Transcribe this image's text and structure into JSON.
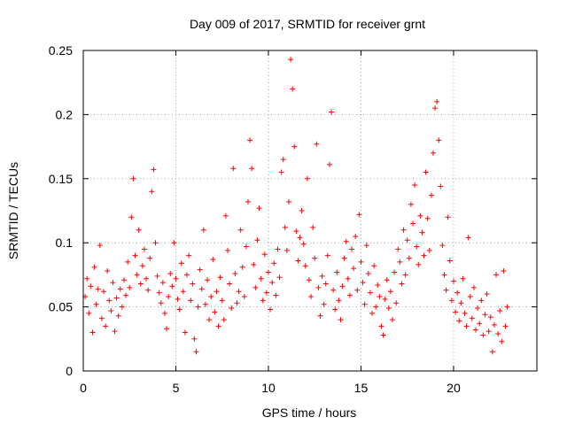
{
  "chart_data": {
    "type": "scatter",
    "title": "Day 009 of 2017, SRMTID for receiver grnt",
    "xlabel": "GPS time / hours",
    "ylabel": "SRMTID / TECUs",
    "xlim": [
      0,
      24.5
    ],
    "ylim": [
      0,
      0.25
    ],
    "x_ticks": [
      0,
      5,
      10,
      15,
      20
    ],
    "y_ticks": [
      0,
      0.05,
      0.1,
      0.15,
      0.2,
      0.25
    ],
    "x_tick_labels": [
      "0",
      "5",
      "10",
      "15",
      "20"
    ],
    "y_tick_labels": [
      "0",
      "0.05",
      "0.1",
      "0.15",
      "0.2",
      "0.25"
    ],
    "grid": true,
    "marker": "plus",
    "series_color": "#ff0000",
    "series": [
      {
        "name": "SRMTID",
        "points": [
          [
            0.1,
            0.058
          ],
          [
            0.2,
            0.072
          ],
          [
            0.3,
            0.045
          ],
          [
            0.4,
            0.066
          ],
          [
            0.5,
            0.03
          ],
          [
            0.6,
            0.081
          ],
          [
            0.7,
            0.052
          ],
          [
            0.8,
            0.064
          ],
          [
            0.9,
            0.098
          ],
          [
            1.0,
            0.041
          ],
          [
            1.1,
            0.062
          ],
          [
            1.2,
            0.035
          ],
          [
            1.3,
            0.078
          ],
          [
            1.4,
            0.055
          ],
          [
            1.5,
            0.047
          ],
          [
            1.6,
            0.069
          ],
          [
            1.7,
            0.031
          ],
          [
            1.8,
            0.057
          ],
          [
            1.9,
            0.043
          ],
          [
            2.0,
            0.064
          ],
          [
            2.1,
            0.05
          ],
          [
            2.2,
            0.071
          ],
          [
            2.3,
            0.059
          ],
          [
            2.4,
            0.085
          ],
          [
            2.5,
            0.065
          ],
          [
            2.6,
            0.12
          ],
          [
            2.7,
            0.15
          ],
          [
            2.8,
            0.09
          ],
          [
            2.9,
            0.075
          ],
          [
            3.0,
            0.11
          ],
          [
            3.1,
            0.068
          ],
          [
            3.2,
            0.082
          ],
          [
            3.3,
            0.095
          ],
          [
            3.4,
            0.072
          ],
          [
            3.5,
            0.063
          ],
          [
            3.6,
            0.088
          ],
          [
            3.7,
            0.14
          ],
          [
            3.8,
            0.157
          ],
          [
            3.9,
            0.1
          ],
          [
            4.0,
            0.074
          ],
          [
            4.1,
            0.061
          ],
          [
            4.2,
            0.053
          ],
          [
            4.3,
            0.069
          ],
          [
            4.4,
            0.045
          ],
          [
            4.5,
            0.033
          ],
          [
            4.6,
            0.058
          ],
          [
            4.7,
            0.076
          ],
          [
            4.8,
            0.066
          ],
          [
            4.9,
            0.1
          ],
          [
            5.0,
            0.072
          ],
          [
            5.1,
            0.056
          ],
          [
            5.2,
            0.048
          ],
          [
            5.3,
            0.084
          ],
          [
            5.4,
            0.062
          ],
          [
            5.5,
            0.03
          ],
          [
            5.6,
            0.075
          ],
          [
            5.7,
            0.09
          ],
          [
            5.8,
            0.055
          ],
          [
            5.9,
            0.068
          ],
          [
            6.0,
            0.025
          ],
          [
            6.1,
            0.015
          ],
          [
            6.2,
            0.05
          ],
          [
            6.3,
            0.079
          ],
          [
            6.4,
            0.064
          ],
          [
            6.5,
            0.11
          ],
          [
            6.6,
            0.052
          ],
          [
            6.7,
            0.071
          ],
          [
            6.8,
            0.04
          ],
          [
            6.9,
            0.058
          ],
          [
            7.0,
            0.087
          ],
          [
            7.1,
            0.046
          ],
          [
            7.2,
            0.062
          ],
          [
            7.3,
            0.035
          ],
          [
            7.4,
            0.073
          ],
          [
            7.5,
            0.055
          ],
          [
            7.6,
            0.04
          ],
          [
            7.7,
            0.121
          ],
          [
            7.8,
            0.094
          ],
          [
            7.9,
            0.068
          ],
          [
            8.0,
            0.049
          ],
          [
            8.1,
            0.158
          ],
          [
            8.2,
            0.076
          ],
          [
            8.3,
            0.053
          ],
          [
            8.4,
            0.062
          ],
          [
            8.5,
            0.11
          ],
          [
            8.6,
            0.081
          ],
          [
            8.7,
            0.058
          ],
          [
            8.8,
            0.097
          ],
          [
            8.9,
            0.132
          ],
          [
            9.0,
            0.18
          ],
          [
            9.1,
            0.158
          ],
          [
            9.2,
            0.083
          ],
          [
            9.3,
            0.065
          ],
          [
            9.4,
            0.102
          ],
          [
            9.5,
            0.127
          ],
          [
            9.6,
            0.072
          ],
          [
            9.7,
            0.055
          ],
          [
            9.8,
            0.091
          ],
          [
            9.9,
            0.061
          ],
          [
            10.0,
            0.077
          ],
          [
            10.1,
            0.048
          ],
          [
            10.2,
            0.069
          ],
          [
            10.3,
            0.084
          ],
          [
            10.4,
            0.059
          ],
          [
            10.5,
            0.095
          ],
          [
            10.6,
            0.073
          ],
          [
            10.7,
            0.155
          ],
          [
            10.8,
            0.165
          ],
          [
            10.9,
            0.112
          ],
          [
            11.0,
            0.094
          ],
          [
            11.1,
            0.132
          ],
          [
            11.2,
            0.243
          ],
          [
            11.3,
            0.22
          ],
          [
            11.4,
            0.175
          ],
          [
            11.5,
            0.109
          ],
          [
            11.6,
            0.086
          ],
          [
            11.7,
            0.104
          ],
          [
            11.8,
            0.125
          ],
          [
            11.9,
            0.099
          ],
          [
            12.0,
            0.082
          ],
          [
            12.1,
            0.15
          ],
          [
            12.2,
            0.071
          ],
          [
            12.3,
            0.058
          ],
          [
            12.4,
            0.112
          ],
          [
            12.5,
            0.088
          ],
          [
            12.6,
            0.177
          ],
          [
            12.7,
            0.065
          ],
          [
            12.8,
            0.043
          ],
          [
            12.9,
            0.074
          ],
          [
            13.0,
            0.052
          ],
          [
            13.1,
            0.068
          ],
          [
            13.2,
            0.09
          ],
          [
            13.3,
            0.161
          ],
          [
            13.4,
            0.202
          ],
          [
            13.5,
            0.063
          ],
          [
            13.6,
            0.048
          ],
          [
            13.7,
            0.077
          ],
          [
            13.8,
            0.055
          ],
          [
            13.9,
            0.04
          ],
          [
            14.0,
            0.066
          ],
          [
            14.1,
            0.088
          ],
          [
            14.2,
            0.101
          ],
          [
            14.3,
            0.072
          ],
          [
            14.4,
            0.059
          ],
          [
            14.5,
            0.095
          ],
          [
            14.6,
            0.08
          ],
          [
            14.7,
            0.105
          ],
          [
            14.8,
            0.063
          ],
          [
            14.9,
            0.122
          ],
          [
            15.0,
            0.085
          ],
          [
            15.1,
            0.069
          ],
          [
            15.2,
            0.052
          ],
          [
            15.3,
            0.098
          ],
          [
            15.4,
            0.076
          ],
          [
            15.5,
            0.061
          ],
          [
            15.6,
            0.045
          ],
          [
            15.7,
            0.082
          ],
          [
            15.8,
            0.05
          ],
          [
            15.9,
            0.067
          ],
          [
            16.0,
            0.058
          ],
          [
            16.1,
            0.035
          ],
          [
            16.2,
            0.028
          ],
          [
            16.3,
            0.056
          ],
          [
            16.4,
            0.071
          ],
          [
            16.5,
            0.049
          ],
          [
            16.6,
            0.062
          ],
          [
            16.7,
            0.04
          ],
          [
            16.8,
            0.077
          ],
          [
            16.9,
            0.053
          ],
          [
            17.0,
            0.095
          ],
          [
            17.1,
            0.085
          ],
          [
            17.2,
            0.068
          ],
          [
            17.3,
            0.11
          ],
          [
            17.4,
            0.075
          ],
          [
            17.5,
            0.102
          ],
          [
            17.6,
            0.088
          ],
          [
            17.7,
            0.13
          ],
          [
            17.8,
            0.115
          ],
          [
            17.9,
            0.145
          ],
          [
            18.0,
            0.097
          ],
          [
            18.1,
            0.083
          ],
          [
            18.2,
            0.121
          ],
          [
            18.3,
            0.108
          ],
          [
            18.4,
            0.09
          ],
          [
            18.5,
            0.155
          ],
          [
            18.6,
            0.119
          ],
          [
            18.7,
            0.094
          ],
          [
            18.8,
            0.137
          ],
          [
            18.9,
            0.17
          ],
          [
            19.0,
            0.205
          ],
          [
            19.1,
            0.21
          ],
          [
            19.2,
            0.18
          ],
          [
            19.3,
            0.144
          ],
          [
            19.4,
            0.098
          ],
          [
            19.5,
            0.075
          ],
          [
            19.6,
            0.063
          ],
          [
            19.7,
            0.12
          ],
          [
            19.8,
            0.086
          ],
          [
            19.9,
            0.055
          ],
          [
            20.0,
            0.07
          ],
          [
            20.1,
            0.046
          ],
          [
            20.2,
            0.061
          ],
          [
            20.3,
            0.039
          ],
          [
            20.4,
            0.053
          ],
          [
            20.5,
            0.072
          ],
          [
            20.6,
            0.045
          ],
          [
            20.7,
            0.035
          ],
          [
            20.8,
            0.104
          ],
          [
            20.9,
            0.058
          ],
          [
            21.0,
            0.041
          ],
          [
            21.1,
            0.065
          ],
          [
            21.2,
            0.032
          ],
          [
            21.3,
            0.049
          ],
          [
            21.4,
            0.037
          ],
          [
            21.5,
            0.055
          ],
          [
            21.6,
            0.028
          ],
          [
            21.7,
            0.044
          ],
          [
            21.8,
            0.06
          ],
          [
            21.9,
            0.031
          ],
          [
            22.0,
            0.042
          ],
          [
            22.1,
            0.015
          ],
          [
            22.2,
            0.036
          ],
          [
            22.3,
            0.075
          ],
          [
            22.4,
            0.029
          ],
          [
            22.5,
            0.047
          ],
          [
            22.6,
            0.023
          ],
          [
            22.7,
            0.078
          ],
          [
            22.8,
            0.035
          ],
          [
            22.9,
            0.05
          ]
        ]
      }
    ]
  }
}
